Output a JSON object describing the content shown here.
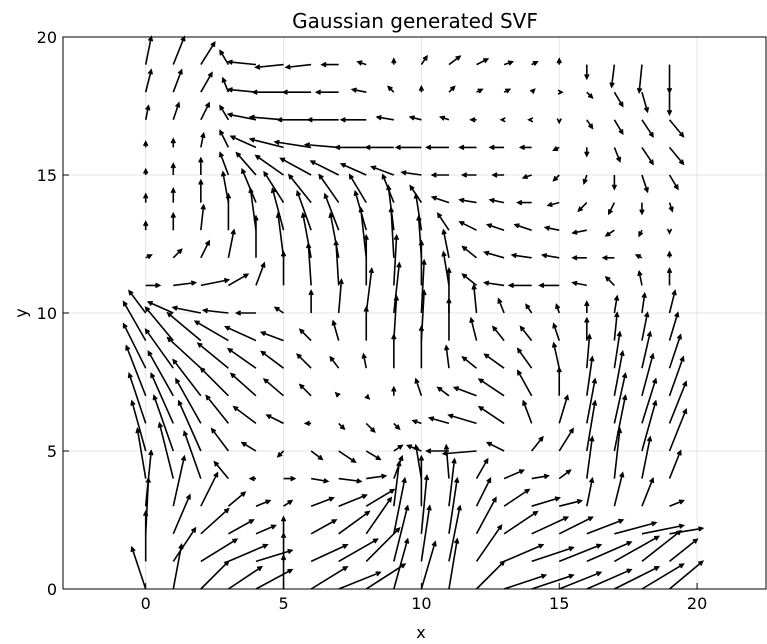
{
  "chart_data": {
    "type": "quiver",
    "title": "Gaussian generated SVF",
    "xlabel": "x",
    "ylabel": "y",
    "xlim": [
      -3,
      22.5
    ],
    "ylim": [
      0,
      20
    ],
    "xticks": [
      0,
      5,
      10,
      15,
      20
    ],
    "yticks": [
      0,
      5,
      10,
      15,
      20
    ],
    "grid": true,
    "color": "#000000",
    "x": [
      0,
      1,
      2,
      3,
      4,
      5,
      6,
      7,
      8,
      9,
      10,
      11,
      12,
      13,
      14,
      15,
      16,
      17,
      18,
      19
    ],
    "y": [
      0,
      1,
      2,
      3,
      4,
      5,
      6,
      7,
      8,
      9,
      10,
      11,
      12,
      13,
      14,
      15,
      16,
      17,
      18,
      19
    ],
    "u": [
      [
        -0.5,
        0.3,
        1,
        1.2,
        1.3,
        0,
        1.3,
        1.5,
        1.4,
        0.5,
        0.5,
        0.3,
        1,
        1.5,
        1.5,
        1.5,
        1.6,
        1.6,
        1.5,
        1.2
      ],
      [
        0,
        0.8,
        1.3,
        1.4,
        1.3,
        0,
        1.3,
        1.4,
        1.2,
        0.5,
        0.3,
        0.4,
        0.9,
        1.4,
        1.5,
        1.5,
        1.6,
        1.6,
        1.4,
        1
      ],
      [
        0.1,
        0.6,
        1,
        0.9,
        0.7,
        0,
        0.9,
        1.1,
        0.9,
        0.4,
        0.2,
        0.3,
        0.7,
        1.2,
        1.3,
        1.2,
        1.3,
        1.5,
        1.5,
        1.2
      ],
      [
        0.2,
        0.4,
        0.6,
        0.6,
        0.5,
        0.3,
        0.8,
        1,
        1,
        0.2,
        0,
        0.2,
        0.5,
        0.9,
        1,
        0.8,
        0.2,
        0.3,
        0.4,
        0.5
      ],
      [
        -0.3,
        -0.5,
        -0.6,
        -0.5,
        -0.2,
        0.4,
        0.6,
        0.8,
        0.7,
        0.3,
        -0.2,
        -0.1,
        0.4,
        0.7,
        0.6,
        0.4,
        0.2,
        0.2,
        0.3,
        0.4
      ],
      [
        -0.5,
        -0.7,
        -0.8,
        -0.6,
        -0.5,
        -0.2,
        0.4,
        0.6,
        0.5,
        0.3,
        -0.5,
        -0.8,
        -1.2,
        -0.6,
        0.4,
        0.5,
        0.3,
        0.4,
        0.5,
        0.6
      ],
      [
        -0.6,
        -0.8,
        -0.9,
        -0.8,
        -0.8,
        -0.6,
        -0.2,
        0.2,
        0.3,
        0.2,
        -0.3,
        -0.7,
        -1,
        -0.9,
        -0.3,
        0.3,
        0.3,
        0.4,
        0.5,
        0.6
      ],
      [
        -0.7,
        -0.9,
        -1,
        -1,
        -0.9,
        -0.7,
        -0.4,
        -0.1,
        0.1,
        0,
        -0.2,
        -0.4,
        -0.8,
        -0.9,
        -0.5,
        0,
        0.2,
        0.3,
        0.4,
        0.5
      ],
      [
        -0.8,
        -1,
        -1.2,
        -1.1,
        -1,
        -0.8,
        -0.5,
        -0.3,
        -0.1,
        0,
        0,
        -0.1,
        -0.5,
        -0.7,
        -0.5,
        -0.2,
        0.1,
        0.2,
        0.3,
        0.4
      ],
      [
        -0.8,
        -1,
        -1.2,
        -1.2,
        -1.1,
        -0.8,
        -0.4,
        -0.2,
        0,
        0.1,
        0.1,
        0,
        -0.2,
        -0.4,
        -0.4,
        -0.2,
        0,
        0.1,
        0.2,
        0.3
      ],
      [
        -0.6,
        -0.9,
        -1,
        -0.9,
        -0.7,
        -0.3,
        0,
        0.1,
        0.2,
        0.2,
        0.1,
        0,
        -0.1,
        -0.2,
        -0.2,
        -0.1,
        0,
        0.1,
        0.1,
        0.2
      ],
      [
        0.5,
        0.8,
        1,
        0.7,
        0.3,
        0,
        -0.1,
        -0.1,
        0,
        0.1,
        0,
        -0.2,
        -0.5,
        -0.7,
        -0.8,
        -0.7,
        -0.5,
        -0.3,
        -0.1,
        0
      ],
      [
        0.2,
        0.3,
        0.3,
        0.2,
        0,
        -0.2,
        -0.3,
        -0.3,
        -0.2,
        -0.1,
        -0.1,
        -0.2,
        -0.5,
        -0.7,
        -0.7,
        -0.6,
        -0.5,
        -0.4,
        -0.2,
        0
      ],
      [
        0,
        0,
        0.1,
        0,
        -0.2,
        -0.4,
        -0.5,
        -0.5,
        -0.4,
        -0.2,
        -0.2,
        -0.4,
        -0.6,
        -0.6,
        -0.6,
        -0.5,
        -0.5,
        -0.3,
        -0.1,
        0
      ],
      [
        0,
        0,
        0,
        -0.2,
        -0.5,
        -0.7,
        -0.8,
        -0.7,
        -0.6,
        -0.4,
        -0.4,
        -0.6,
        -0.6,
        -0.5,
        -0.5,
        -0.4,
        -0.3,
        -0.2,
        0,
        0.1
      ],
      [
        0,
        0,
        0,
        -0.3,
        -0.7,
        -1,
        -1.1,
        -1,
        -0.9,
        -0.8,
        -0.7,
        -0.6,
        -0.5,
        -0.4,
        -0.3,
        -0.2,
        -0.1,
        0,
        0.2,
        0.3
      ],
      [
        0,
        0,
        0.1,
        -0.3,
        -0.9,
        -1.2,
        -1.3,
        -1.2,
        -1.1,
        -1,
        -0.9,
        -0.8,
        -0.6,
        -0.5,
        -0.4,
        -0.2,
        0,
        0.2,
        0.4,
        0.5
      ],
      [
        0.1,
        0.2,
        0.3,
        -0.3,
        -1,
        -1.2,
        -1.2,
        -1.1,
        -0.9,
        -0.6,
        -0.4,
        -0.3,
        -0.2,
        -0.1,
        -0.1,
        0,
        0.2,
        0.3,
        0.4,
        0.5
      ],
      [
        0.2,
        0.3,
        0.4,
        -0.2,
        -1,
        -1.1,
        -1,
        -0.8,
        -0.5,
        -0.2,
        0,
        0.2,
        0.2,
        0.2,
        0.1,
        0.1,
        0.2,
        0.3,
        0.2,
        0
      ],
      [
        0.2,
        0.4,
        0.5,
        -0.3,
        -1,
        -1,
        -0.9,
        -0.6,
        -0.3,
        0,
        0.2,
        0.4,
        0.4,
        0.3,
        0.2,
        0,
        0,
        -0.1,
        -0.1,
        0
      ]
    ],
    "v": [
      [
        1.5,
        1.6,
        1,
        0.8,
        0.7,
        1.2,
        0.8,
        0.6,
        0.9,
        1.8,
        1.7,
        1.8,
        1,
        0.5,
        0.5,
        0.6,
        0.7,
        0.8,
        0.9,
        1
      ],
      [
        1.8,
        1.2,
        0.8,
        0.6,
        0.4,
        1,
        0.6,
        0.8,
        1.2,
        2,
        2,
        2,
        1.3,
        0.6,
        0.5,
        0.6,
        0.7,
        0.9,
        1.1,
        0.8
      ],
      [
        2,
        1.4,
        0.9,
        0.5,
        0.3,
        0.6,
        0.5,
        0.8,
        1.3,
        2,
        2.1,
        2,
        1.3,
        0.8,
        0.6,
        0.6,
        0.5,
        0.4,
        0.3,
        0.2
      ],
      [
        2,
        1.8,
        1.2,
        0.5,
        0.2,
        0.2,
        0.3,
        0.4,
        0.6,
        1.6,
        1.8,
        1.7,
        1,
        0.6,
        0.3,
        0.2,
        1,
        1.2,
        1,
        0.2
      ],
      [
        1.8,
        2,
        1.7,
        0.6,
        0,
        0,
        -0.1,
        -0.1,
        0.1,
        0.8,
        1.2,
        1.2,
        0.7,
        0.3,
        0.1,
        0.3,
        1.5,
        1.8,
        1.5,
        1
      ],
      [
        1.8,
        2,
        1.8,
        0.8,
        0.3,
        -0.2,
        -0.3,
        -0.4,
        -0.3,
        0.2,
        0.2,
        0,
        -0.1,
        0.3,
        0.5,
        0.8,
        1.8,
        2,
        1.8,
        1.5
      ],
      [
        1.8,
        1.8,
        1.6,
        1,
        0.6,
        0.3,
        0,
        -0.2,
        -0.3,
        -0.2,
        0.1,
        0.2,
        0.3,
        0.6,
        0.8,
        1,
        1.6,
        1.8,
        1.6,
        1.5
      ],
      [
        1.8,
        1.6,
        1.3,
        1,
        0.8,
        0.6,
        0.4,
        0.1,
        -0.1,
        0.3,
        0.6,
        0.3,
        0.3,
        0.6,
        0.9,
        1,
        1.4,
        1.6,
        1.5,
        1.4
      ],
      [
        1.6,
        1.4,
        1.1,
        0.9,
        0.7,
        0.6,
        0.5,
        0.4,
        0.5,
        1.2,
        1.5,
        0.8,
        0.4,
        0.5,
        0.7,
        0.9,
        1.2,
        1.3,
        1.3,
        1.2
      ],
      [
        1.4,
        1.2,
        1,
        0.7,
        0.5,
        0.3,
        0.4,
        0.7,
        1.2,
        1.6,
        1.8,
        1.5,
        0.8,
        0.5,
        0.5,
        0.6,
        0.8,
        1,
        1,
        1
      ],
      [
        0.8,
        0.4,
        0.2,
        0.1,
        0,
        0.2,
        0.8,
        1.2,
        1.6,
        1.8,
        1.9,
        1.6,
        1,
        0.5,
        0.3,
        0.3,
        0.4,
        0.6,
        0.7,
        0.8
      ],
      [
        0,
        0.1,
        0.2,
        0.4,
        0.8,
        1.2,
        1.5,
        1.6,
        1.8,
        1.8,
        1.6,
        1.2,
        0.4,
        0.1,
        0,
        0,
        0.1,
        0.3,
        0.5,
        0.6
      ],
      [
        0.1,
        0.3,
        0.6,
        1,
        1.5,
        1.6,
        1.6,
        1.6,
        1.8,
        1.8,
        1.5,
        1,
        0.4,
        0.2,
        0.1,
        0.1,
        0,
        0,
        0.1,
        0.2
      ],
      [
        0.3,
        0.6,
        0.9,
        1.3,
        1.5,
        1.5,
        1.4,
        1.3,
        1.4,
        1.6,
        1.3,
        0.6,
        0.3,
        0.2,
        0.2,
        0.1,
        -0.1,
        -0.2,
        -0.2,
        -0.1
      ],
      [
        0.3,
        0.5,
        0.8,
        1.1,
        1.2,
        1.1,
        1,
        1,
        1,
        1,
        0.6,
        0.2,
        0.1,
        0.1,
        0,
        -0.1,
        -0.3,
        -0.4,
        -0.4,
        -0.3
      ],
      [
        0.2,
        0.4,
        0.6,
        0.8,
        0.8,
        0.7,
        0.6,
        0.5,
        0.4,
        0.3,
        0.1,
        0,
        0,
        0,
        -0.1,
        -0.2,
        -0.3,
        -0.5,
        -0.6,
        -0.5
      ],
      [
        0.2,
        0.3,
        0.5,
        0.6,
        0.4,
        0.3,
        0.2,
        0.1,
        0,
        0,
        0,
        0,
        0,
        0,
        0,
        -0.1,
        -0.3,
        -0.5,
        -0.6,
        -0.6
      ],
      [
        0.5,
        0.6,
        0.6,
        0.5,
        0.2,
        0.1,
        0,
        0,
        0,
        0.1,
        0.1,
        0.1,
        0,
        0,
        0,
        -0.1,
        -0.3,
        -0.5,
        -0.6,
        -0.6
      ],
      [
        0.8,
        0.8,
        0.7,
        0.5,
        0.1,
        0,
        0,
        0,
        0.1,
        0.2,
        0.2,
        0.2,
        0.1,
        0.1,
        0.1,
        0,
        -0.2,
        -0.5,
        -0.7,
        -0.8
      ],
      [
        1,
        1,
        0.8,
        0.5,
        0.1,
        -0.1,
        -0.1,
        0,
        0.1,
        0.2,
        0.3,
        0.3,
        0.2,
        0.1,
        0.1,
        0.2,
        -0.5,
        -0.8,
        -1,
        -1
      ]
    ]
  }
}
